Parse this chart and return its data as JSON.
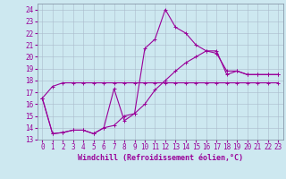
{
  "xlabel": "Windchill (Refroidissement éolien,°C)",
  "bg_color": "#cde8f0",
  "line_color": "#990099",
  "grid_color": "#aabbcc",
  "xlim": [
    -0.5,
    23.5
  ],
  "ylim": [
    13,
    24.5
  ],
  "xticks": [
    0,
    1,
    2,
    3,
    4,
    5,
    6,
    7,
    8,
    9,
    10,
    11,
    12,
    13,
    14,
    15,
    16,
    17,
    18,
    19,
    20,
    21,
    22,
    23
  ],
  "yticks": [
    13,
    14,
    15,
    16,
    17,
    18,
    19,
    20,
    21,
    22,
    23,
    24
  ],
  "line1_x": [
    0,
    1,
    2,
    3,
    4,
    5,
    6,
    7,
    8,
    9,
    10,
    11,
    12,
    13,
    14,
    15,
    16,
    17,
    18,
    19,
    20,
    21,
    22,
    23
  ],
  "line1_y": [
    16.5,
    17.5,
    17.8,
    17.8,
    17.8,
    17.8,
    17.8,
    17.8,
    17.8,
    17.8,
    17.8,
    17.8,
    17.8,
    17.8,
    17.8,
    17.8,
    17.8,
    17.8,
    17.8,
    17.8,
    17.8,
    17.8,
    17.8,
    17.8
  ],
  "line2_x": [
    0,
    1,
    2,
    3,
    4,
    5,
    6,
    7,
    8,
    9,
    10,
    11,
    12,
    13,
    14,
    15,
    16,
    17,
    18,
    19,
    20,
    21,
    22,
    23
  ],
  "line2_y": [
    16.5,
    13.5,
    13.6,
    13.8,
    13.8,
    13.5,
    14.0,
    14.2,
    15.0,
    15.2,
    16.0,
    17.2,
    18.0,
    18.8,
    19.5,
    20.0,
    20.5,
    20.5,
    18.5,
    18.8,
    18.5,
    18.5,
    18.5,
    18.5
  ],
  "line3_x": [
    0,
    1,
    2,
    3,
    4,
    5,
    6,
    7,
    8,
    9,
    10,
    11,
    12,
    13,
    14,
    15,
    16,
    17,
    18,
    19,
    20,
    21,
    22,
    23
  ],
  "line3_y": [
    16.5,
    13.5,
    13.6,
    13.8,
    13.8,
    13.5,
    14.0,
    17.3,
    14.6,
    15.2,
    20.7,
    21.5,
    24.0,
    22.5,
    22.0,
    21.0,
    20.5,
    20.3,
    18.8,
    18.8,
    18.5,
    18.5,
    18.5,
    18.5
  ],
  "xlabel_fontsize": 6,
  "tick_fontsize": 5.5,
  "lw": 0.8,
  "marker_size": 2.5
}
